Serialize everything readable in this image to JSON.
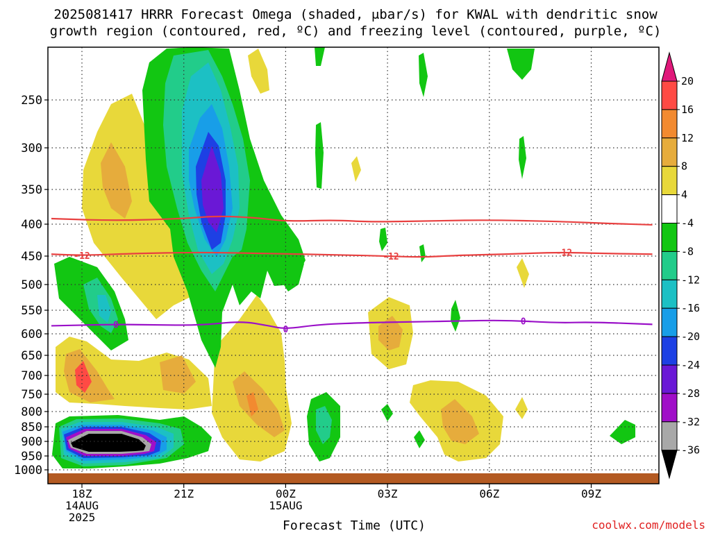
{
  "title": {
    "line1": "2025081417 HRRR Forecast Omega (shaded, μbar/s) for KWAL with dendritic snow",
    "line2": "growth region (contoured, red, ºC) and freezing level (contoured, purple, ºC)"
  },
  "x_axis": {
    "title": "Forecast Time (UTC)",
    "ticks": [
      {
        "lines": [
          "18Z",
          "14AUG",
          "2025"
        ],
        "hours": 0
      },
      {
        "lines": [
          "21Z"
        ],
        "hours": 3
      },
      {
        "lines": [
          "00Z",
          "15AUG"
        ],
        "hours": 6
      },
      {
        "lines": [
          "03Z"
        ],
        "hours": 9
      },
      {
        "lines": [
          "06Z"
        ],
        "hours": 12
      },
      {
        "lines": [
          "09Z"
        ],
        "hours": 15
      }
    ]
  },
  "credit": "coolwx.com/models",
  "colorbar": {
    "labels": [
      "20",
      "16",
      "12",
      "8",
      "4",
      "-4",
      "-8",
      "-12",
      "-16",
      "-20",
      "-24",
      "-28",
      "-32",
      "-36"
    ],
    "colors": [
      "#ff4a44",
      "#f28a30",
      "#e6ac3c",
      "#e8d83a",
      "#ffffff",
      "#12c612",
      "#22cc8a",
      "#1cc0c4",
      "#189ee8",
      "#1d40e4",
      "#6a18d6",
      "#a00ec8",
      "#a8a8a8"
    ],
    "top_color": "#e0187a",
    "bottom_color": "#000000"
  },
  "chart_data": {
    "type": "heatmap",
    "title": "2025081417 HRRR Forecast Omega (shaded, μbar/s) for KWAL with dendritic snow growth region (contoured, red, ºC) and freezing level (contoured, purple, ºC)",
    "xlabel": "Forecast Time (UTC)",
    "ylabel": "",
    "x_range_hours": [
      -0.9,
      16.8
    ],
    "y_levels_hPa": [
      250,
      300,
      350,
      400,
      450,
      500,
      550,
      600,
      650,
      700,
      750,
      800,
      850,
      900,
      950,
      1000
    ],
    "y_range_hPa": [
      200,
      1025
    ],
    "grid": true,
    "contour_levels_shaded": [
      -36,
      -32,
      -28,
      -24,
      -20,
      -16,
      -12,
      -8,
      -4,
      4,
      8,
      12,
      16,
      20
    ],
    "temperature_contours": [
      {
        "label": "-12",
        "color": "#e84040",
        "points_hours_hPa": [
          [
            -0.9,
            447
          ],
          [
            0,
            449
          ],
          [
            1.5,
            446
          ],
          [
            3.5,
            444
          ],
          [
            5.5,
            446
          ],
          [
            7.5,
            448
          ],
          [
            9,
            450
          ],
          [
            10,
            452
          ],
          [
            11,
            449
          ],
          [
            12.5,
            447
          ],
          [
            14,
            444
          ],
          [
            15.5,
            446
          ],
          [
            16.8,
            447
          ]
        ]
      },
      {
        "label": "",
        "color": "#e84040",
        "points_hours_hPa": [
          [
            -0.9,
            392
          ],
          [
            1,
            395
          ],
          [
            3,
            392
          ],
          [
            4,
            388
          ],
          [
            5.2,
            391
          ],
          [
            6,
            396
          ],
          [
            7.5,
            394
          ],
          [
            8.5,
            397
          ],
          [
            10.5,
            395
          ],
          [
            12,
            394
          ],
          [
            14,
            396
          ],
          [
            15.5,
            399
          ],
          [
            16.8,
            401
          ]
        ]
      },
      {
        "label": "0",
        "color": "#9a10c8",
        "points_hours_hPa": [
          [
            -0.9,
            583
          ],
          [
            1,
            580
          ],
          [
            2,
            581
          ],
          [
            3.5,
            582
          ],
          [
            4.7,
            573
          ],
          [
            5.5,
            583
          ],
          [
            6,
            590
          ],
          [
            7,
            580
          ],
          [
            8.5,
            576
          ],
          [
            9.5,
            575
          ],
          [
            11,
            573
          ],
          [
            12.5,
            571
          ],
          [
            14,
            577
          ],
          [
            15,
            575
          ],
          [
            16.8,
            580
          ]
        ]
      }
    ],
    "omega_features": [
      {
        "name": "lower-level descent core",
        "hours": [
          -0.5,
          3.5
        ],
        "hPa": [
          850,
          980
        ],
        "min": -36
      },
      {
        "name": "upper-level descent core",
        "hours": [
          2.8,
          5
        ],
        "hPa": [
          205,
          630
        ],
        "min": -28
      },
      {
        "name": "mid-level ascent",
        "hours": [
          -0.5,
          2.5
        ],
        "hPa": [
          600,
          800
        ],
        "max": 16
      }
    ],
    "terrain_top_hPa": 1010,
    "terrain_color": "#b35a22"
  }
}
